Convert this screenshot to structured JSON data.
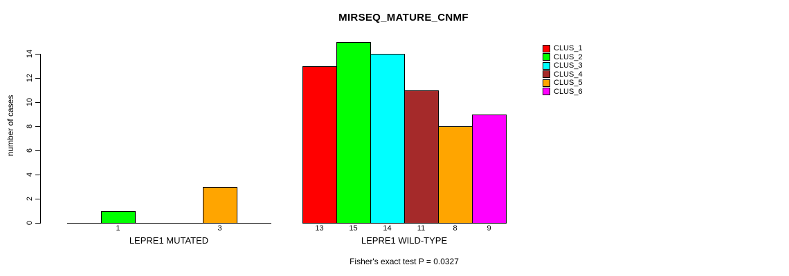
{
  "chart_data": {
    "type": "bar",
    "title": "MIRSEQ_MATURE_CNMF",
    "ylabel": "number of cases",
    "xlabel": "",
    "ylim": [
      0,
      14
    ],
    "yticks": [
      0,
      2,
      4,
      6,
      8,
      10,
      12,
      14
    ],
    "grid": false,
    "legend_position": "right",
    "legend": [
      {
        "label": "CLUS_1",
        "color": "#FF0000"
      },
      {
        "label": "CLUS_2",
        "color": "#00FF00"
      },
      {
        "label": "CLUS_3",
        "color": "#00FFFF"
      },
      {
        "label": "CLUS_4",
        "color": "#A52A2A"
      },
      {
        "label": "CLUS_5",
        "color": "#FFA500"
      },
      {
        "label": "CLUS_6",
        "color": "#FF00FF"
      }
    ],
    "groups": [
      {
        "label": "LEPRE1 MUTATED",
        "categories": [
          "CLUS_1",
          "CLUS_2",
          "CLUS_3",
          "CLUS_4",
          "CLUS_5",
          "CLUS_6"
        ],
        "values": [
          0,
          1,
          0,
          0,
          3,
          0
        ],
        "bar_labels": [
          "",
          "1",
          "",
          "",
          "3",
          ""
        ]
      },
      {
        "label": "LEPRE1 WILD-TYPE",
        "categories": [
          "CLUS_1",
          "CLUS_2",
          "CLUS_3",
          "CLUS_4",
          "CLUS_5",
          "CLUS_6"
        ],
        "values": [
          13,
          15,
          14,
          11,
          8,
          9
        ],
        "bar_labels": [
          "13",
          "15",
          "14",
          "11",
          "8",
          "9"
        ]
      }
    ],
    "annotation": "Fisher's exact test P = 0.0327"
  }
}
